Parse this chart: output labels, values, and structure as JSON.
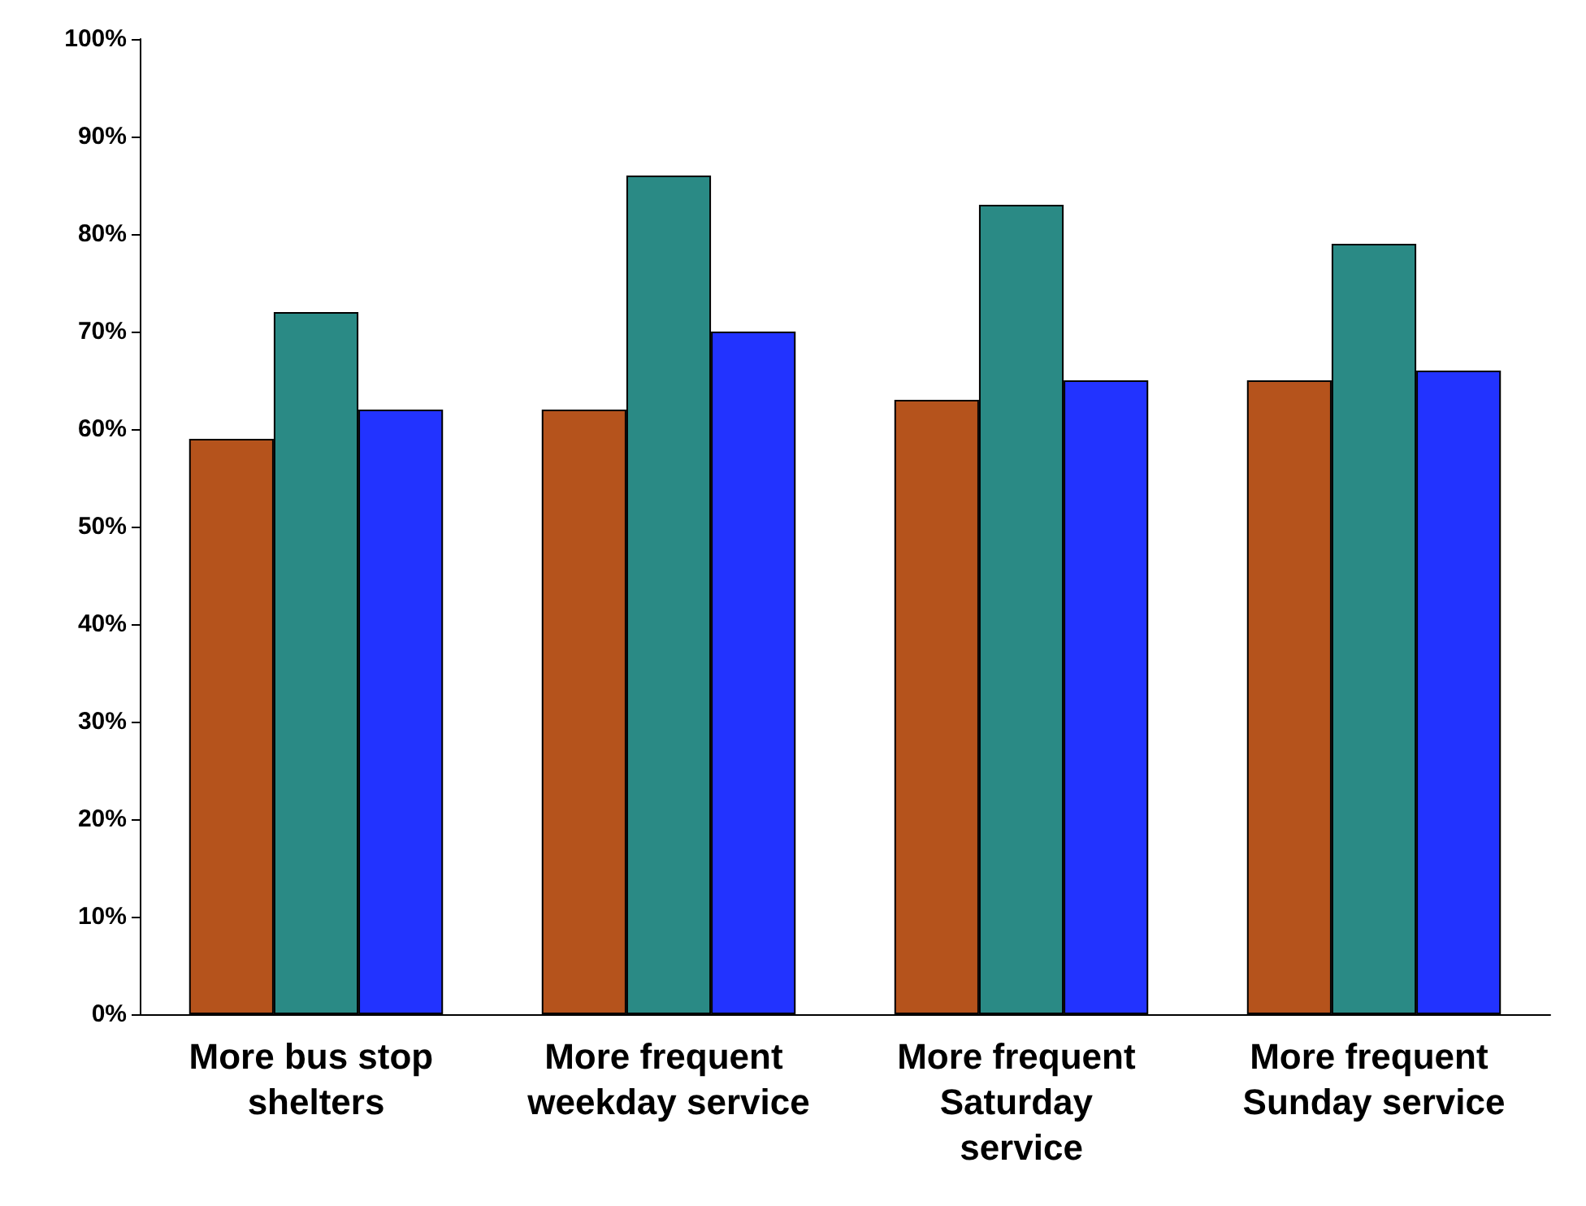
{
  "chart_data": {
    "type": "bar",
    "categories": [
      "More bus stop shelters",
      "More frequent weekday service",
      "More frequent Saturday service",
      "More frequent Sunday service"
    ],
    "series": [
      {
        "color": "#b5531c",
        "values": [
          59,
          62,
          63,
          65
        ]
      },
      {
        "color": "#2a8a85",
        "values": [
          72,
          86,
          83,
          79
        ]
      },
      {
        "color": "#2233ff",
        "values": [
          62,
          70,
          65,
          66
        ]
      }
    ],
    "ylim": [
      0,
      100
    ],
    "yticks": [
      {
        "value": 0,
        "label": "0%"
      },
      {
        "value": 10,
        "label": "10%"
      },
      {
        "value": 20,
        "label": "20%"
      },
      {
        "value": 30,
        "label": "30%"
      },
      {
        "value": 40,
        "label": "40%"
      },
      {
        "value": 50,
        "label": "50%"
      },
      {
        "value": 60,
        "label": "60%"
      },
      {
        "value": 70,
        "label": "70%"
      },
      {
        "value": 80,
        "label": "80%"
      },
      {
        "value": 90,
        "label": "90%"
      },
      {
        "value": 100,
        "label": "100%"
      }
    ],
    "grid": false
  }
}
